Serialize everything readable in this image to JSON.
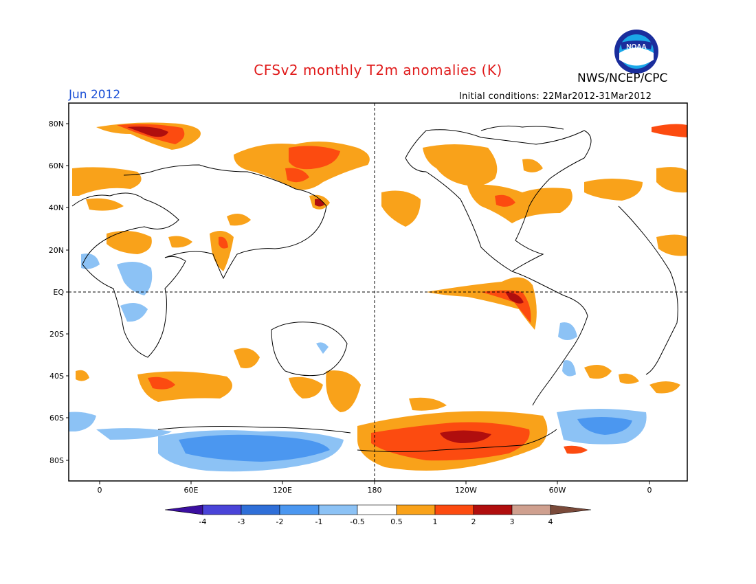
{
  "title": "CFSv2 monthly T2m anomalies (K)",
  "agency": "NWS/NCEP/CPC",
  "month": "Jun 2012",
  "initial_conditions": "Initial conditions: 22Mar2012-31Mar2012",
  "logo_text": "NOAA",
  "y_axis_labels": [
    "80N",
    "60N",
    "40N",
    "20N",
    "EQ",
    "20S",
    "40S",
    "60S",
    "80S"
  ],
  "x_axis_labels": [
    "0",
    "60E",
    "120E",
    "180",
    "120W",
    "60W",
    "0"
  ],
  "colorbar": {
    "labels": [
      "-4",
      "-3",
      "-2",
      "-1",
      "-0.5",
      "0.5",
      "1",
      "2",
      "3",
      "4"
    ],
    "colors": [
      "#3b0fa0",
      "#4a44d8",
      "#2f6fd8",
      "#4b97f0",
      "#8cc2f5",
      "#ffffff",
      "#f9a21a",
      "#fc4b10",
      "#b00e0e",
      "#cfa08f",
      "#7a4a3a"
    ]
  },
  "colors": {
    "orange": "#f9a21a",
    "red_orange": "#fc4b10",
    "dark_red": "#b00e0e",
    "light_blue": "#8cc2f5",
    "blue": "#4b97f0",
    "title_red": "#e01a1a",
    "month_blue": "#1a4fd6"
  }
}
